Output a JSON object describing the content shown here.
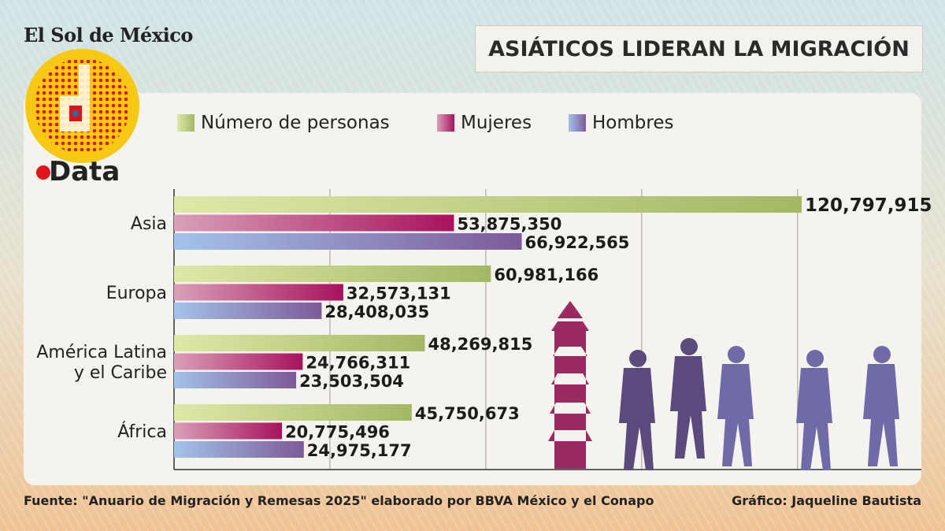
{
  "brand": "El Sol de México",
  "logo_text": "Data",
  "title": "ASIÁTICOS LIDERAN LA MIGRACIÓN",
  "chart_data": {
    "type": "bar",
    "orientation": "horizontal",
    "title": "ASIÁTICOS LIDERAN LA MIGRACIÓN",
    "categories": [
      "Asia",
      "Europa",
      "América Latina y el Caribe",
      "África"
    ],
    "series": [
      {
        "name": "Número de personas",
        "values": [
          120797915,
          60981166,
          48269815,
          45750673
        ],
        "color": "#a7bb6a"
      },
      {
        "name": "Mujeres",
        "values": [
          53875350,
          32573131,
          24766311,
          20775496
        ],
        "color": "#a8185e"
      },
      {
        "name": "Hombres",
        "values": [
          66922565,
          28408035,
          23503504,
          24975177
        ],
        "color": "#7a5a9a"
      }
    ],
    "value_labels": [
      [
        "120,797,915",
        "53,875,350",
        "66,922,565"
      ],
      [
        "60,981,166",
        "32,573,131",
        "28,408,035"
      ],
      [
        "48,269,815",
        "24,766,311",
        "23,503,504"
      ],
      [
        "45,750,673",
        "20,775,496",
        "24,975,177"
      ]
    ],
    "category_labels": [
      [
        "Asia"
      ],
      [
        "Europa"
      ],
      [
        "América Latina",
        "y el Caribe"
      ],
      [
        "África"
      ]
    ],
    "xlim": [
      0,
      130000000
    ],
    "grid_step": 30000000,
    "grid": true,
    "legend_position": "top"
  },
  "footer": {
    "source": "Fuente: \"Anuario de Migración y Remesas 2025\" elaborado por BBVA México y el Conapo",
    "credit": "Gráfico: Jaqueline Bautista"
  }
}
